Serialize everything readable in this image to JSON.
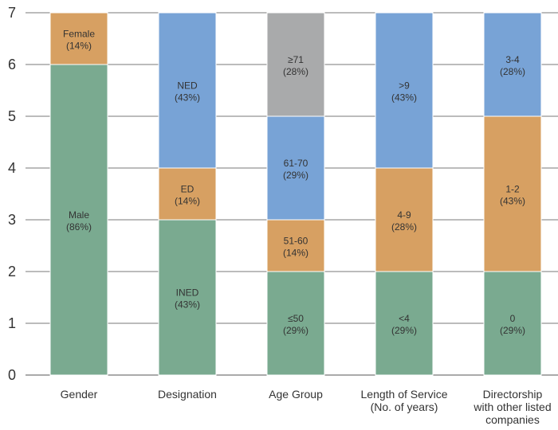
{
  "chart_data": {
    "type": "bar",
    "stacked": true,
    "ylim": [
      0,
      7
    ],
    "yticks": [
      "0",
      "1",
      "2",
      "3",
      "4",
      "5",
      "6",
      "7"
    ],
    "grid": "horizontal",
    "colors": {
      "green": "#7aaa90",
      "orange": "#d7a062",
      "blue": "#78a3d6",
      "gray": "#a9aaab"
    },
    "categories": [
      {
        "label_lines": [
          "Gender"
        ],
        "segments": [
          {
            "name": "Male",
            "pct": "(86%)",
            "value": 6,
            "color": "green"
          },
          {
            "name": "Female",
            "pct": "(14%)",
            "value": 1,
            "color": "orange"
          }
        ]
      },
      {
        "label_lines": [
          "Designation"
        ],
        "segments": [
          {
            "name": "INED",
            "pct": "(43%)",
            "value": 3,
            "color": "green"
          },
          {
            "name": "ED",
            "pct": "(14%)",
            "value": 1,
            "color": "orange"
          },
          {
            "name": "NED",
            "pct": "(43%)",
            "value": 3,
            "color": "blue"
          }
        ]
      },
      {
        "label_lines": [
          "Age Group"
        ],
        "segments": [
          {
            "name": "≤50",
            "pct": "(29%)",
            "value": 2,
            "color": "green"
          },
          {
            "name": "51-60",
            "pct": "(14%)",
            "value": 1,
            "color": "orange"
          },
          {
            "name": "61-70",
            "pct": "(29%)",
            "value": 2,
            "color": "blue"
          },
          {
            "name": "≥71",
            "pct": "(28%)",
            "value": 2,
            "color": "gray"
          }
        ]
      },
      {
        "label_lines": [
          "Length of Service",
          "(No. of years)"
        ],
        "segments": [
          {
            "name": "<4",
            "pct": "(29%)",
            "value": 2,
            "color": "green"
          },
          {
            "name": "4-9",
            "pct": "(28%)",
            "value": 2,
            "color": "orange"
          },
          {
            "name": ">9",
            "pct": "(43%)",
            "value": 3,
            "color": "blue"
          }
        ]
      },
      {
        "label_lines": [
          "Directorship",
          "with other listed",
          "companies"
        ],
        "segments": [
          {
            "name": "0",
            "pct": "(29%)",
            "value": 2,
            "color": "green"
          },
          {
            "name": "1-2",
            "pct": "(43%)",
            "value": 3,
            "color": "orange"
          },
          {
            "name": "3-4",
            "pct": "(28%)",
            "value": 2,
            "color": "blue"
          }
        ]
      }
    ]
  }
}
